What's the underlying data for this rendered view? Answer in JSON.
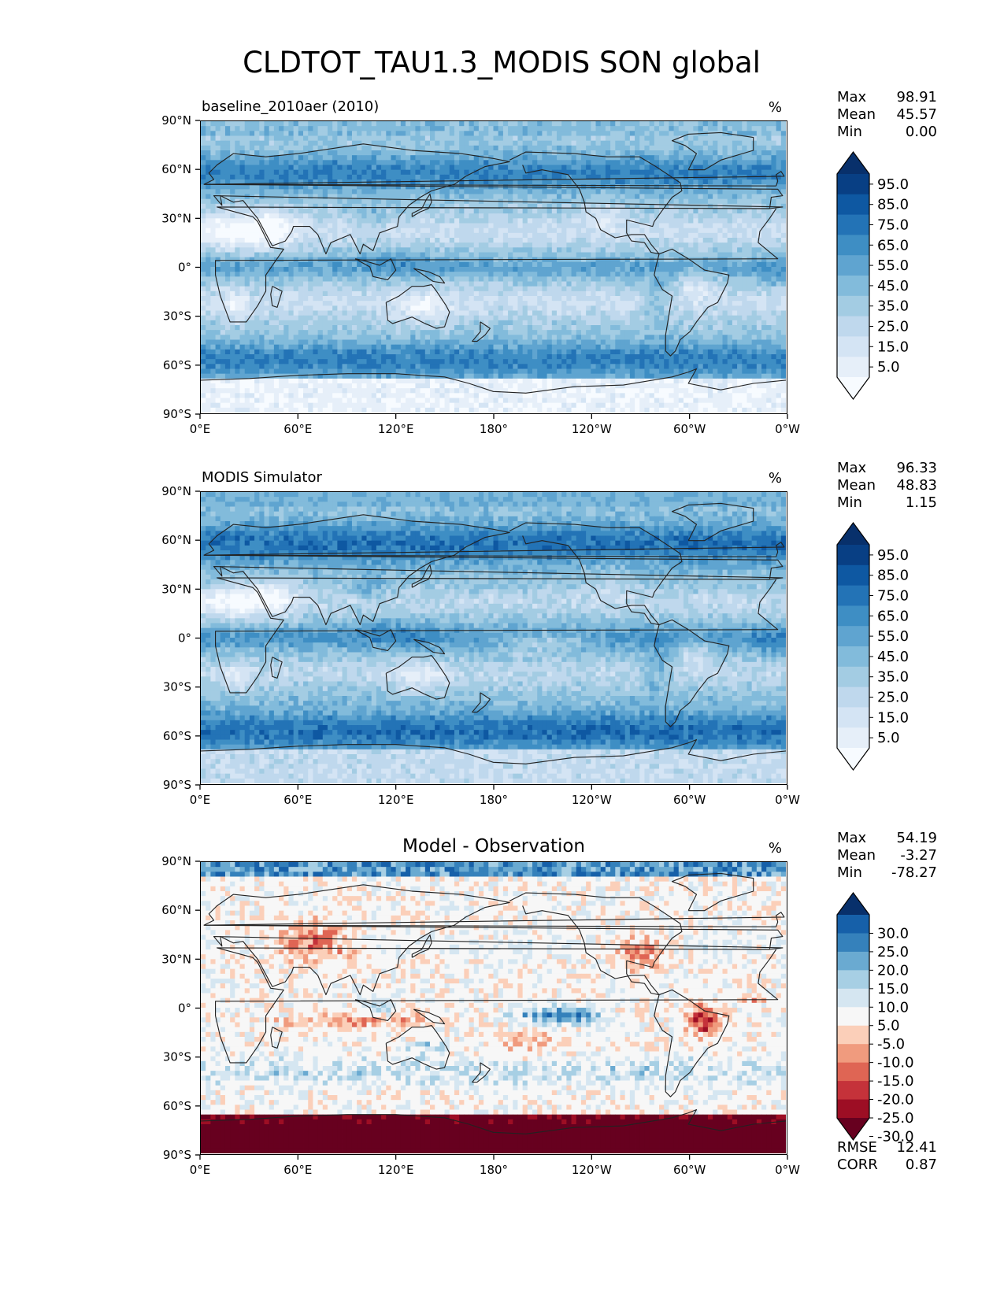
{
  "figure": {
    "title": "CLDTOT_TAU1.3_MODIS SON global",
    "colors": {
      "blues": [
        "#f7fbff",
        "#e6eff9",
        "#d4e4f4",
        "#bfd8ed",
        "#a3cce3",
        "#82bbdb",
        "#5fa4d0",
        "#3e8ec4",
        "#2373b6",
        "#0e58a2",
        "#083f84",
        "#08306b"
      ],
      "rdbu": [
        "#67001f",
        "#9d0e24",
        "#c5323a",
        "#df6554",
        "#f09b7e",
        "#fbcfb9",
        "#f7f7f7",
        "#d5e6f1",
        "#a7cfe4",
        "#6aaad1",
        "#3581bb",
        "#1660a9",
        "#08306b"
      ],
      "coast": "#222222"
    }
  },
  "chart_data": [
    {
      "type": "heatmap",
      "panel": "top",
      "title_left": "baseline_2010aer (2010)",
      "title_center": "",
      "units": "%",
      "xlabels": [
        "0°E",
        "60°E",
        "120°E",
        "180°",
        "120°W",
        "60°W",
        "0°W"
      ],
      "ylabels": [
        "90°N",
        "60°N",
        "30°N",
        "0°",
        "30°S",
        "60°S",
        "90°S"
      ],
      "xlim": [
        0,
        360
      ],
      "ylim": [
        -90,
        90
      ],
      "stats": [
        {
          "label": "Max",
          "value": "98.91"
        },
        {
          "label": "Mean",
          "value": "45.57"
        },
        {
          "label": "Min",
          "value": "0.00"
        }
      ],
      "colorbar": {
        "cmap": "blues",
        "extend": "both",
        "ticks": [
          "95.0",
          "85.0",
          "75.0",
          "65.0",
          "55.0",
          "45.0",
          "35.0",
          "25.0",
          "15.0",
          "5.0"
        ]
      },
      "extra_stats": []
    },
    {
      "type": "heatmap",
      "panel": "middle",
      "title_left": "MODIS Simulator",
      "title_center": "",
      "units": "%",
      "xlabels": [
        "0°E",
        "60°E",
        "120°E",
        "180°",
        "120°W",
        "60°W",
        "0°W"
      ],
      "ylabels": [
        "90°N",
        "60°N",
        "30°N",
        "0°",
        "30°S",
        "60°S",
        "90°S"
      ],
      "xlim": [
        0,
        360
      ],
      "ylim": [
        -90,
        90
      ],
      "stats": [
        {
          "label": "Max",
          "value": "96.33"
        },
        {
          "label": "Mean",
          "value": "48.83"
        },
        {
          "label": "Min",
          "value": "1.15"
        }
      ],
      "colorbar": {
        "cmap": "blues",
        "extend": "both",
        "ticks": [
          "95.0",
          "85.0",
          "75.0",
          "65.0",
          "55.0",
          "45.0",
          "35.0",
          "25.0",
          "15.0",
          "5.0"
        ]
      },
      "extra_stats": []
    },
    {
      "type": "heatmap",
      "panel": "bottom",
      "title_left": "",
      "title_center": "Model - Observation",
      "units": "%",
      "xlabels": [
        "0°E",
        "60°E",
        "120°E",
        "180°",
        "120°W",
        "60°W",
        "0°W"
      ],
      "ylabels": [
        "90°N",
        "60°N",
        "30°N",
        "0°",
        "30°S",
        "60°S",
        "90°S"
      ],
      "xlim": [
        0,
        360
      ],
      "ylim": [
        -90,
        90
      ],
      "stats": [
        {
          "label": "Max",
          "value": "54.19"
        },
        {
          "label": "Mean",
          "value": "-3.27"
        },
        {
          "label": "Min",
          "value": "-78.27"
        }
      ],
      "colorbar": {
        "cmap": "rdbu",
        "extend": "both",
        "ticks": [
          "30.0",
          "25.0",
          "20.0",
          "15.0",
          "10.0",
          "5.0",
          "-5.0",
          "-10.0",
          "-15.0",
          "-20.0",
          "-25.0",
          "-30.0"
        ]
      },
      "extra_stats": [
        {
          "label": "RMSE",
          "value": "12.41"
        },
        {
          "label": "CORR",
          "value": "0.87"
        }
      ]
    }
  ]
}
